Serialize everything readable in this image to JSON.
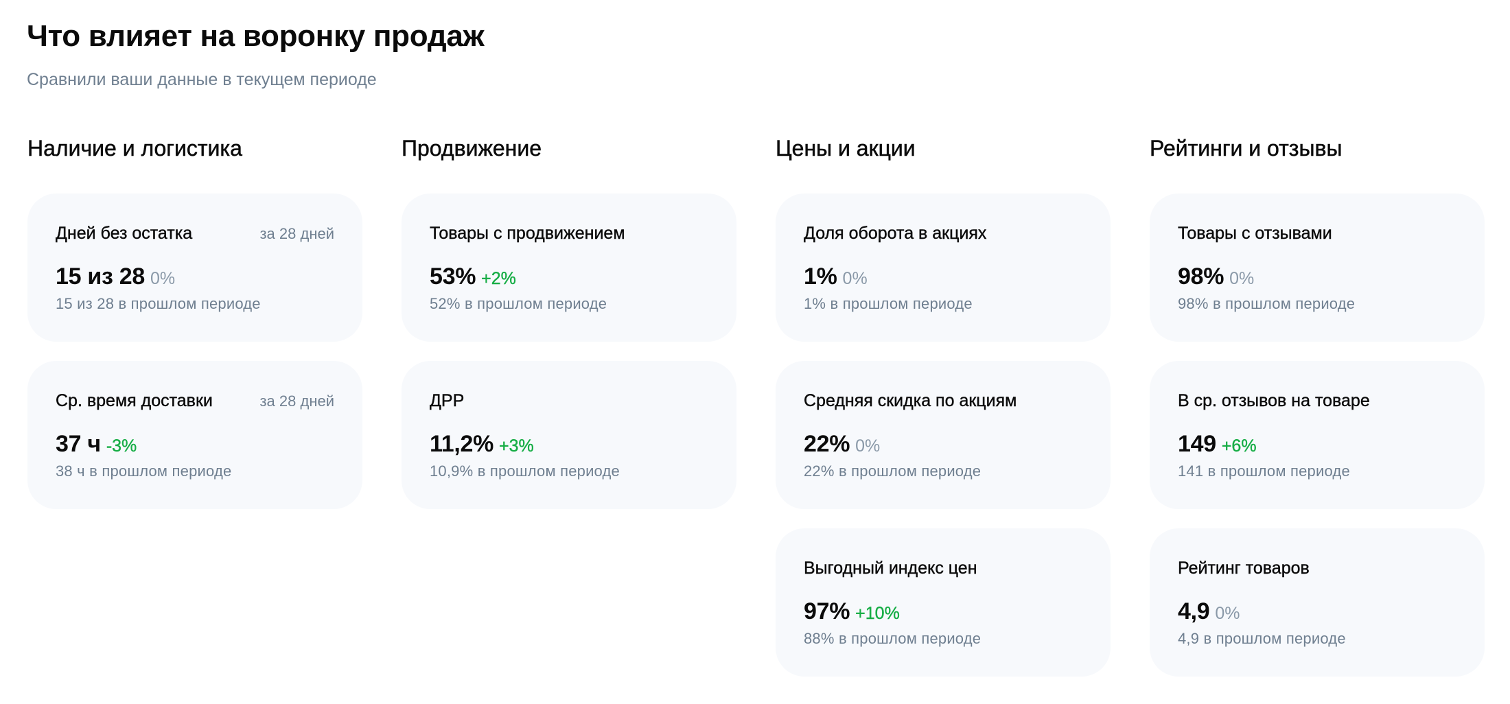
{
  "header": {
    "title": "Что влияет на воронку продаж",
    "subtitle": "Сравнили ваши данные в текущем периоде"
  },
  "colors": {
    "positive": "#16ad45",
    "neutral": "#8a99a8",
    "card_bg": "#f7f9fc",
    "muted_text": "#6f7f90"
  },
  "sections": [
    {
      "title": "Наличие и логистика",
      "cards": [
        {
          "title": "Дней без остатка",
          "period": "за 28 дней",
          "value": "15 из 28",
          "delta": "0%",
          "delta_type": "neutral",
          "previous": "15 из 28 в прошлом периоде"
        },
        {
          "title": "Ср. время доставки",
          "period": "за 28 дней",
          "value": "37 ч",
          "delta": "-3%",
          "delta_type": "positive",
          "previous": "38 ч в прошлом периоде"
        }
      ]
    },
    {
      "title": "Продвижение",
      "cards": [
        {
          "title": "Товары с продвижением",
          "value": "53%",
          "delta": "+2%",
          "delta_type": "positive",
          "previous": "52% в прошлом периоде"
        },
        {
          "title": "ДРР",
          "value": "11,2%",
          "delta": "+3%",
          "delta_type": "positive",
          "previous": "10,9% в прошлом периоде"
        }
      ]
    },
    {
      "title": "Цены и акции",
      "cards": [
        {
          "title": "Доля оборота в акциях",
          "value": "1%",
          "delta": "0%",
          "delta_type": "neutral",
          "previous": "1% в прошлом периоде"
        },
        {
          "title": "Средняя скидка по акциям",
          "value": "22%",
          "delta": "0%",
          "delta_type": "neutral",
          "previous": "22% в прошлом периоде"
        },
        {
          "title": "Выгодный индекс цен",
          "value": "97%",
          "delta": "+10%",
          "delta_type": "positive",
          "previous": "88% в прошлом периоде"
        }
      ]
    },
    {
      "title": "Рейтинги и отзывы",
      "cards": [
        {
          "title": "Товары с отзывами",
          "value": "98%",
          "delta": "0%",
          "delta_type": "neutral",
          "previous": "98% в прошлом периоде"
        },
        {
          "title": "В ср. отзывов на товаре",
          "value": "149",
          "delta": "+6%",
          "delta_type": "positive",
          "previous": "141 в прошлом периоде"
        },
        {
          "title": "Рейтинг товаров",
          "value": "4,9",
          "delta": "0%",
          "delta_type": "neutral",
          "previous": "4,9 в прошлом периоде"
        }
      ]
    }
  ]
}
